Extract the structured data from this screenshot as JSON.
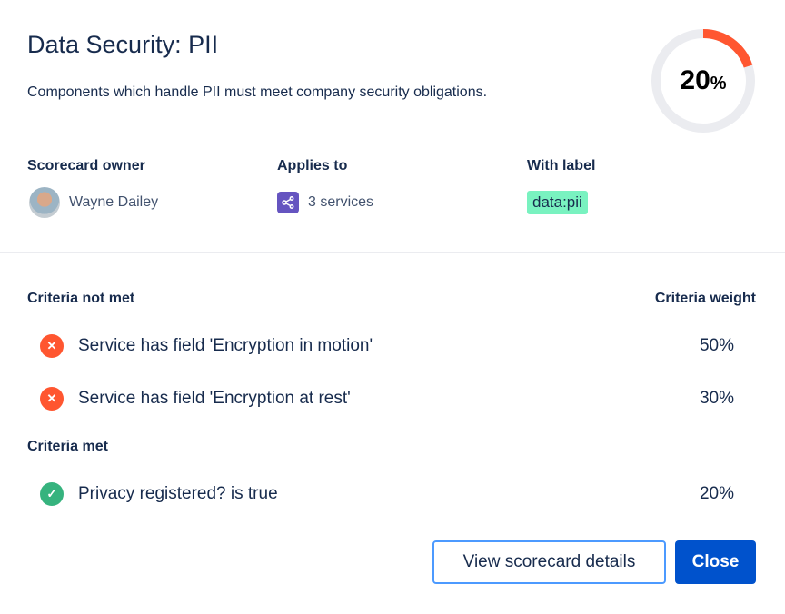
{
  "title": "Data Security: PII",
  "description": "Components which handle PII must meet company security obligations.",
  "score": {
    "value": "20",
    "unit": "%",
    "percent": 20,
    "color": "#ff5630",
    "track": "#ebecf0"
  },
  "owner": {
    "label": "Scorecard owner",
    "name": "Wayne Dailey"
  },
  "applies": {
    "label": "Applies to",
    "value": "3 services",
    "icon": "service-graph-icon"
  },
  "with_label": {
    "label": "With label",
    "tag": "data:pii"
  },
  "criteria_not_met": {
    "heading": "Criteria not met",
    "weight_heading": "Criteria weight",
    "items": [
      {
        "text": "Service has field 'Encryption in motion'",
        "weight": "50%"
      },
      {
        "text": "Service has field 'Encryption at rest'",
        "weight": "30%"
      }
    ]
  },
  "criteria_met": {
    "heading": "Criteria met",
    "items": [
      {
        "text": "Privacy registered? is true",
        "weight": "20%"
      }
    ]
  },
  "buttons": {
    "details": "View scorecard details",
    "close": "Close"
  }
}
